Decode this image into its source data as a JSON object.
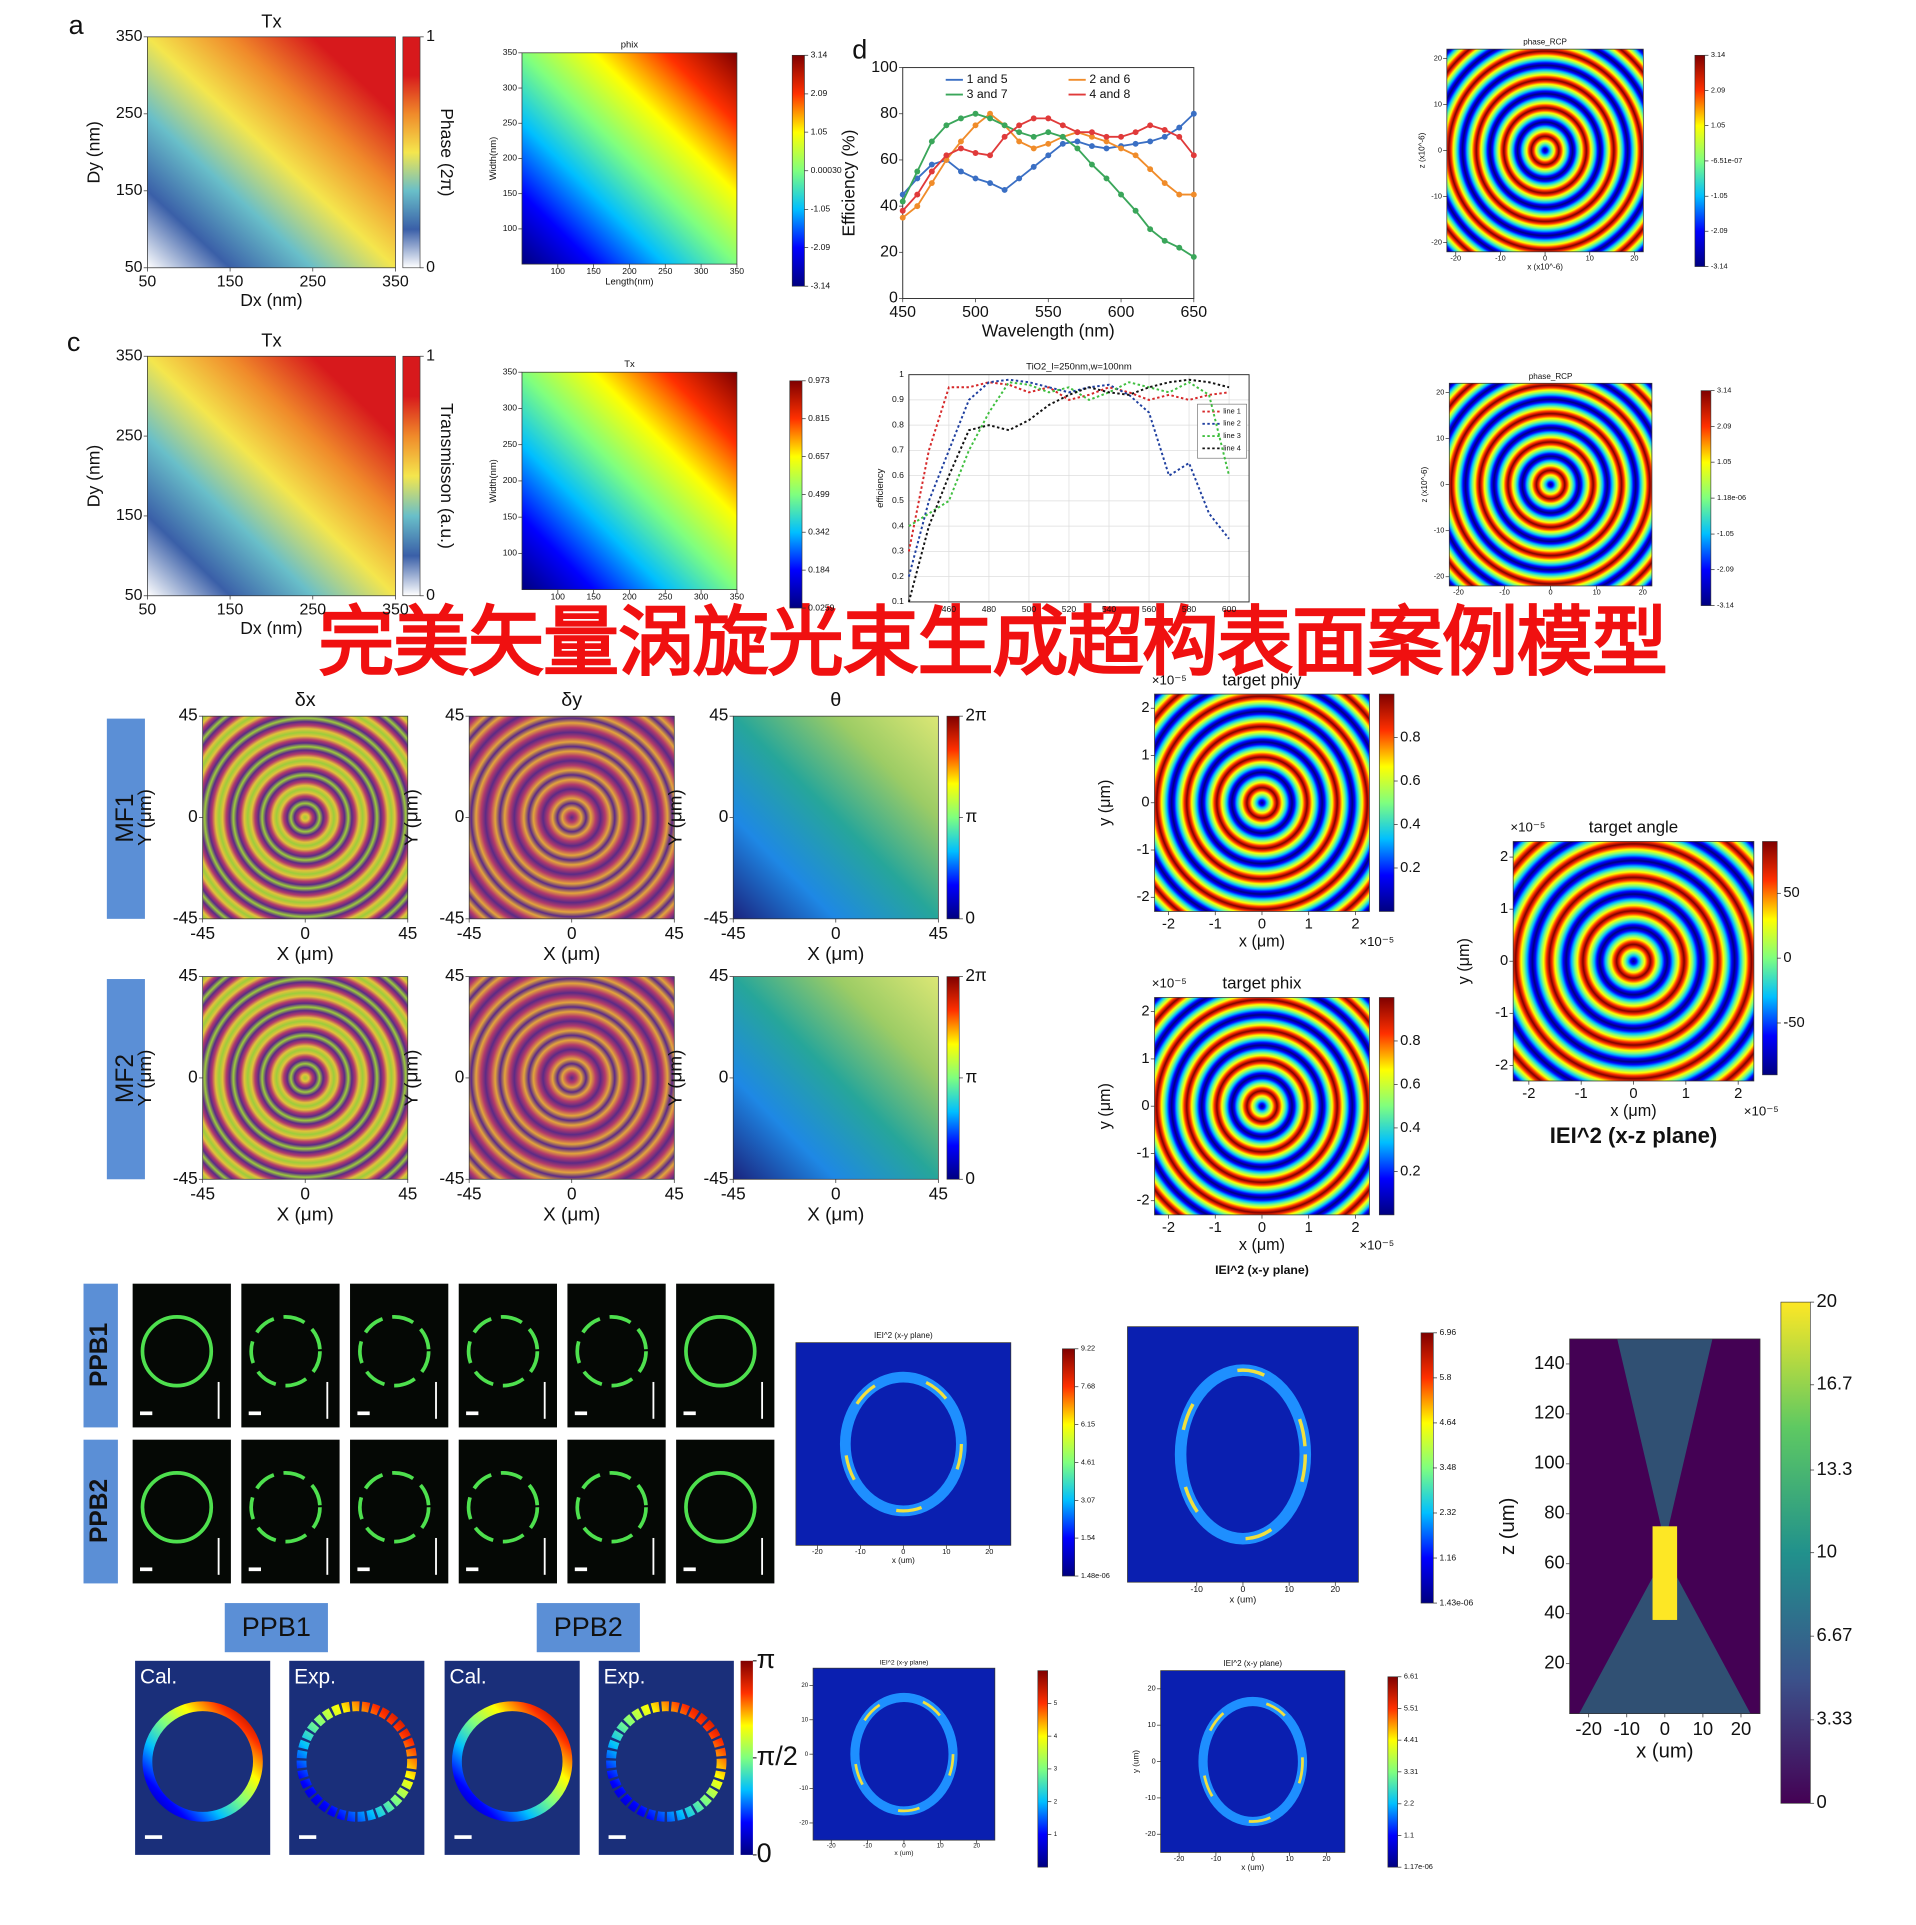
{
  "banner": "完美矢量涡旋光束生成超构表面案例模型",
  "mf_rows": [
    "MF1",
    "MF2"
  ],
  "chart_data": [
    {
      "type": "heatmap",
      "label": "a",
      "title": "Tx",
      "xlabel": "Dx (nm)",
      "ylabel": "Dy (nm)",
      "xlim": [
        50,
        350
      ],
      "ylim": [
        50,
        350
      ],
      "xticks": [
        50,
        150,
        250,
        350
      ],
      "yticks": [
        50,
        150,
        250,
        350
      ],
      "colormap": "phase",
      "pattern": "smooth",
      "colorbar": {
        "label": "Phase (2π)",
        "lim": [
          0,
          1
        ],
        "ticks": [
          0,
          1
        ]
      }
    },
    {
      "type": "heatmap",
      "title": "phix",
      "xlabel": "Length(nm)",
      "ylabel": "Width(nm)",
      "xlim": [
        50,
        350
      ],
      "ylim": [
        50,
        350
      ],
      "xticks": [
        100,
        150,
        200,
        250,
        300,
        350
      ],
      "yticks": [
        100,
        150,
        200,
        250,
        300,
        350
      ],
      "colormap": "jet",
      "pattern": "smooth",
      "colorbar": {
        "lim": [
          -3.14,
          3.14
        ],
        "ticks": [
          3.14,
          2.09,
          1.05,
          {
            "value": 0.0003,
            "label": "0.00030"
          },
          -1.05,
          -2.09,
          -3.14
        ]
      }
    },
    {
      "type": "line",
      "label": "d",
      "xlabel": "Wavelength (nm)",
      "ylabel": "Efficiency (%)",
      "xlim": [
        450,
        650
      ],
      "ylim": [
        0,
        100
      ],
      "xticks": [
        450,
        500,
        550,
        600,
        650
      ],
      "yticks": [
        0,
        20,
        40,
        60,
        80,
        100
      ],
      "legend": "top",
      "grid": false,
      "dash": false,
      "x": [
        450,
        460,
        470,
        480,
        490,
        500,
        510,
        520,
        530,
        540,
        550,
        560,
        570,
        580,
        590,
        600,
        610,
        620,
        630,
        640,
        650
      ],
      "series": [
        {
          "name": "1 and 5",
          "color": "#3a6fc4",
          "values": [
            45,
            52,
            58,
            60,
            55,
            52,
            50,
            47,
            52,
            57,
            62,
            67,
            68,
            66,
            65,
            66,
            67,
            68,
            70,
            74,
            80
          ]
        },
        {
          "name": "2 and 6",
          "color": "#f08c2a",
          "values": [
            35,
            40,
            50,
            60,
            68,
            75,
            80,
            75,
            68,
            65,
            67,
            70,
            72,
            70,
            68,
            65,
            62,
            56,
            50,
            45,
            45
          ]
        },
        {
          "name": "3 and 7",
          "color": "#3aa65a",
          "values": [
            42,
            55,
            68,
            75,
            78,
            80,
            78,
            75,
            72,
            70,
            72,
            70,
            65,
            58,
            52,
            45,
            38,
            30,
            25,
            22,
            18
          ]
        },
        {
          "name": "4 and 8",
          "color": "#e03a3a",
          "values": [
            38,
            45,
            55,
            62,
            65,
            63,
            62,
            70,
            75,
            78,
            78,
            75,
            72,
            72,
            70,
            70,
            72,
            75,
            73,
            70,
            62
          ]
        }
      ]
    },
    {
      "type": "heatmap",
      "title": "phase_RCP",
      "xlabel": "x (x10^-6)",
      "ylabel": "z (x10^-6)",
      "xlim": [
        -22,
        22
      ],
      "ylim": [
        -22,
        22
      ],
      "xticks": [
        -20,
        -10,
        0,
        10,
        20
      ],
      "yticks": [
        -20,
        -10,
        0,
        10,
        20
      ],
      "colormap": "jet",
      "pattern": "rings",
      "colorbar": {
        "lim": [
          -3.14,
          3.14
        ],
        "ticks": [
          3.14,
          2.09,
          1.05,
          {
            "value": -6.51e-07,
            "label": "-6.51e-07"
          },
          -1.05,
          -2.09,
          -3.14
        ]
      }
    },
    {
      "type": "heatmap",
      "label": "c",
      "title": "Tx",
      "xlabel": "Dx (nm)",
      "ylabel": "Dy (nm)",
      "xlim": [
        50,
        350
      ],
      "ylim": [
        50,
        350
      ],
      "xticks": [
        50,
        150,
        250,
        350
      ],
      "yticks": [
        50,
        150,
        250,
        350
      ],
      "colormap": "phase",
      "pattern": "smooth",
      "colorbar": {
        "label": "Transmisson (a.u.)",
        "lim": [
          0,
          1
        ],
        "ticks": [
          0,
          1
        ]
      }
    },
    {
      "type": "heatmap",
      "title": "Tx",
      "ylabel": "Width(nm)",
      "xlim": [
        50,
        350
      ],
      "ylim": [
        50,
        350
      ],
      "xticks": [
        100,
        150,
        200,
        250,
        300,
        350
      ],
      "yticks": [
        100,
        150,
        200,
        250,
        300,
        350
      ],
      "colormap": "jet",
      "pattern": "smooth",
      "colorbar": {
        "lim": [
          0.0259,
          0.973
        ],
        "ticks": [
          0.973,
          0.815,
          0.657,
          0.499,
          0.342,
          0.184,
          0.0259
        ]
      }
    },
    {
      "type": "line",
      "title": "TiO2_l=250nm,w=100nm",
      "ylabel": "efficiency",
      "xlim": [
        440,
        610
      ],
      "ylim": [
        0.1,
        1
      ],
      "xticks": [
        460,
        480,
        500,
        520,
        540,
        560,
        580,
        600
      ],
      "yticks": [
        0.1,
        0.2,
        0.3,
        0.4,
        0.5,
        0.6,
        0.7,
        0.8,
        0.9,
        1
      ],
      "legend": "right",
      "grid": true,
      "dash": true,
      "x": [
        440,
        450,
        460,
        470,
        480,
        490,
        500,
        510,
        520,
        530,
        540,
        550,
        560,
        570,
        580,
        590,
        600
      ],
      "series": [
        {
          "name": "line 1",
          "color": "#d62728",
          "values": [
            0.3,
            0.7,
            0.95,
            0.95,
            0.97,
            0.96,
            0.93,
            0.95,
            0.9,
            0.92,
            0.95,
            0.93,
            0.9,
            0.92,
            0.9,
            0.92,
            0.93
          ]
        },
        {
          "name": "line 2",
          "color": "#1f3f9f",
          "values": [
            0.2,
            0.5,
            0.7,
            0.9,
            0.97,
            0.98,
            0.97,
            0.95,
            0.93,
            0.95,
            0.96,
            0.92,
            0.85,
            0.6,
            0.65,
            0.45,
            0.35
          ]
        },
        {
          "name": "line 3",
          "color": "#3fbf3f",
          "values": [
            0.4,
            0.45,
            0.5,
            0.7,
            0.85,
            0.97,
            0.96,
            0.93,
            0.95,
            0.9,
            0.93,
            0.97,
            0.95,
            0.93,
            0.97,
            0.92,
            0.6
          ]
        },
        {
          "name": "line 4",
          "color": "#111111",
          "values": [
            0.1,
            0.4,
            0.6,
            0.78,
            0.8,
            0.78,
            0.82,
            0.88,
            0.92,
            0.95,
            0.93,
            0.92,
            0.95,
            0.97,
            0.98,
            0.97,
            0.95
          ]
        }
      ]
    },
    {
      "type": "heatmap",
      "title": "phase_RCP",
      "ylabel": "z (x10^-6)",
      "xlim": [
        -22,
        22
      ],
      "ylim": [
        -22,
        22
      ],
      "xticks": [
        -20,
        -10,
        0,
        10,
        20
      ],
      "yticks": [
        -20,
        -10,
        0,
        10,
        20
      ],
      "colormap": "jet",
      "pattern": "rings",
      "colorbar": {
        "lim": [
          -3.14,
          3.14
        ],
        "ticks": [
          3.14,
          2.09,
          1.05,
          {
            "value": 1.18e-06,
            "label": "1.18e-06"
          },
          -1.05,
          -2.09,
          -3.14
        ]
      }
    },
    {
      "type": "heatmap",
      "title": "δx",
      "xlabel": "X (μm)",
      "ylabel": "Y (μm)",
      "xlim": [
        -45,
        45
      ],
      "ylim": [
        -45,
        45
      ],
      "xticks": [
        -45,
        0,
        45
      ],
      "yticks": [
        -45,
        0,
        45
      ],
      "colormap": "mf",
      "pattern": "rings"
    },
    {
      "type": "heatmap",
      "title": "δy",
      "xlabel": "X (μm)",
      "ylabel": "Y (μm)",
      "xlim": [
        -45,
        45
      ],
      "ylim": [
        -45,
        45
      ],
      "xticks": [
        -45,
        0,
        45
      ],
      "yticks": [
        -45,
        0,
        45
      ],
      "colormap": "mf2",
      "pattern": "rings"
    },
    {
      "type": "heatmap",
      "title": "θ",
      "xlabel": "X (μm)",
      "ylabel": "Y (μm)",
      "xlim": [
        -45,
        45
      ],
      "ylim": [
        -45,
        45
      ],
      "xticks": [
        -45,
        0,
        45
      ],
      "yticks": [
        -45,
        0,
        45
      ],
      "colormap": "theta",
      "pattern": "smooth",
      "colorbar": {
        "colormap": "jet",
        "lim": [
          0,
          6.283
        ],
        "ticks": [
          {
            "value": 6.283,
            "label": "2π"
          },
          {
            "value": 3.142,
            "label": "π"
          },
          0
        ]
      }
    },
    {
      "type": "heatmap",
      "xlabel": "X (μm)",
      "ylabel": "Y (μm)",
      "xlim": [
        -45,
        45
      ],
      "ylim": [
        -45,
        45
      ],
      "xticks": [
        -45,
        0,
        45
      ],
      "yticks": [
        -45,
        0,
        45
      ],
      "colormap": "mf",
      "pattern": "rings"
    },
    {
      "type": "heatmap",
      "xlabel": "X (μm)",
      "ylabel": "Y (μm)",
      "xlim": [
        -45,
        45
      ],
      "ylim": [
        -45,
        45
      ],
      "xticks": [
        -45,
        0,
        45
      ],
      "yticks": [
        -45,
        0,
        45
      ],
      "colormap": "mf2",
      "pattern": "rings"
    },
    {
      "type": "heatmap",
      "xlabel": "X (μm)",
      "ylabel": "Y (μm)",
      "xlim": [
        -45,
        45
      ],
      "ylim": [
        -45,
        45
      ],
      "xticks": [
        -45,
        0,
        45
      ],
      "yticks": [
        -45,
        0,
        45
      ],
      "colormap": "theta",
      "pattern": "smooth",
      "colorbar": {
        "colormap": "jet",
        "lim": [
          0,
          6.283
        ],
        "ticks": [
          {
            "value": 6.283,
            "label": "2π"
          },
          {
            "value": 3.142,
            "label": "π"
          },
          0
        ]
      }
    },
    {
      "type": "heatmap",
      "title": "target phiy",
      "xlabel": "x (μm)",
      "ylabel": "y (μm)",
      "x_multiplier": "×10⁻⁵",
      "y_multiplier": "×10⁻⁵",
      "xlim": [
        -2.3,
        2.3
      ],
      "ylim": [
        -2.3,
        2.3
      ],
      "xticks": [
        -2,
        -1,
        0,
        1,
        2
      ],
      "yticks": [
        -2,
        -1,
        0,
        1,
        2
      ],
      "colormap": "jet",
      "pattern": "rings",
      "colorbar": {
        "lim": [
          0,
          1
        ],
        "ticks": [
          0.2,
          0.4,
          0.6,
          0.8
        ]
      }
    },
    {
      "type": "heatmap",
      "title": "target phix",
      "xlabel": "x (μm)",
      "ylabel": "y (μm)",
      "x_multiplier": "×10⁻⁵",
      "y_multiplier": "×10⁻⁵",
      "caption": "IEI^2 (x-y plane)",
      "xlim": [
        -2.3,
        2.3
      ],
      "ylim": [
        -2.3,
        2.3
      ],
      "xticks": [
        -2,
        -1,
        0,
        1,
        2
      ],
      "yticks": [
        -2,
        -1,
        0,
        1,
        2
      ],
      "colormap": "jet",
      "pattern": "rings",
      "colorbar": {
        "lim": [
          0,
          1
        ],
        "ticks": [
          0.2,
          0.4,
          0.6,
          0.8
        ]
      }
    },
    {
      "type": "heatmap",
      "title": "target angle",
      "xlabel": "x (μm)",
      "ylabel": "y (μm)",
      "x_multiplier": "×10⁻⁵",
      "y_multiplier": "×10⁻⁵",
      "caption": "IEI^2 (x-z plane)",
      "xlim": [
        -2.3,
        2.3
      ],
      "ylim": [
        -2.3,
        2.3
      ],
      "xticks": [
        -2,
        -1,
        0,
        1,
        2
      ],
      "yticks": [
        -2,
        -1,
        0,
        1,
        2
      ],
      "colormap": "jet",
      "pattern": "rings",
      "colorbar": {
        "lim": [
          -90,
          90
        ],
        "ticks": [
          50,
          0,
          -50
        ]
      }
    },
    {
      "type": "image_grid",
      "rows": [
        "PPB1",
        "PPB2"
      ],
      "columns": 6
    },
    {
      "type": "phase_rings",
      "groups": [
        "PPB1",
        "PPB2"
      ],
      "labels": [
        "Cal.",
        "Exp.",
        "Cal.",
        "Exp."
      ],
      "colormap": "jet",
      "colorbar": {
        "lim": [
          0,
          3.1416
        ],
        "ticks": [
          {
            "value": 3.1416,
            "label": "π"
          },
          {
            "value": 1.5708,
            "label": "π/2"
          },
          0
        ]
      }
    },
    {
      "type": "heatmap",
      "title": "IEI^2 (x-y plane)",
      "xlabel": "x (um)",
      "xlim": [
        -25,
        25
      ],
      "ylim": [
        -25,
        25
      ],
      "xticks": [
        -20,
        -10,
        0,
        10,
        20
      ],
      "colormap": "jet",
      "pattern": "donut",
      "colorbar": {
        "lim": [
          1.48e-06,
          9.22
        ],
        "ticks": [
          9.22,
          7.68,
          6.15,
          4.61,
          3.07,
          1.54,
          {
            "value": 1.48e-06,
            "label": "1.48e-06"
          }
        ]
      }
    },
    {
      "type": "heatmap",
      "xlabel": "x (um)",
      "xlim": [
        -25,
        25
      ],
      "ylim": [
        -25,
        25
      ],
      "xticks": [
        -10,
        0,
        10,
        20
      ],
      "colormap": "jet",
      "pattern": "donut",
      "colorbar": {
        "lim": [
          1.43e-06,
          6.96
        ],
        "ticks": [
          6.96,
          5.8,
          4.64,
          3.48,
          2.32,
          1.16,
          {
            "value": 1.43e-06,
            "label": "1.43e-06"
          }
        ]
      }
    },
    {
      "type": "heatmap",
      "title": "IEI^2 (x-y plane)",
      "xlabel": "x (um)",
      "xlim": [
        -25,
        25
      ],
      "ylim": [
        -25,
        25
      ],
      "xticks": [
        -20,
        -10,
        0,
        10,
        20
      ],
      "yticks": [
        -20,
        -10,
        0,
        10,
        20
      ],
      "colormap": "jet",
      "pattern": "donut",
      "colorbar": {
        "lim": [
          0,
          6
        ],
        "ticks": [
          5,
          4,
          3,
          2,
          1
        ]
      }
    },
    {
      "type": "heatmap",
      "title": "IEI^2 (x-y plane)",
      "xlabel": "x (um)",
      "ylabel": "y (um)",
      "xlim": [
        -25,
        25
      ],
      "ylim": [
        -25,
        25
      ],
      "xticks": [
        -20,
        -10,
        0,
        10,
        20
      ],
      "yticks": [
        -20,
        -10,
        0,
        10,
        20
      ],
      "colormap": "jet",
      "pattern": "donut",
      "colorbar": {
        "lim": [
          1.17e-06,
          6.61
        ],
        "ticks": [
          6.61,
          5.51,
          4.41,
          3.31,
          2.2,
          1.1,
          {
            "value": 1.17e-06,
            "label": "1.17e-06"
          }
        ]
      }
    },
    {
      "type": "heatmap",
      "xlabel": "x (um)",
      "ylabel": "z (um)",
      "xlim": [
        -25,
        25
      ],
      "ylim": [
        0,
        150
      ],
      "xticks": [
        -20,
        -10,
        0,
        10,
        20
      ],
      "yticks": [
        20,
        40,
        60,
        80,
        100,
        120,
        140
      ],
      "colormap": "viridis",
      "pattern": "beam",
      "colorbar": {
        "lim": [
          0,
          20
        ],
        "ticks": [
          20,
          16.7,
          13.3,
          10,
          6.67,
          3.33,
          0
        ]
      }
    }
  ]
}
